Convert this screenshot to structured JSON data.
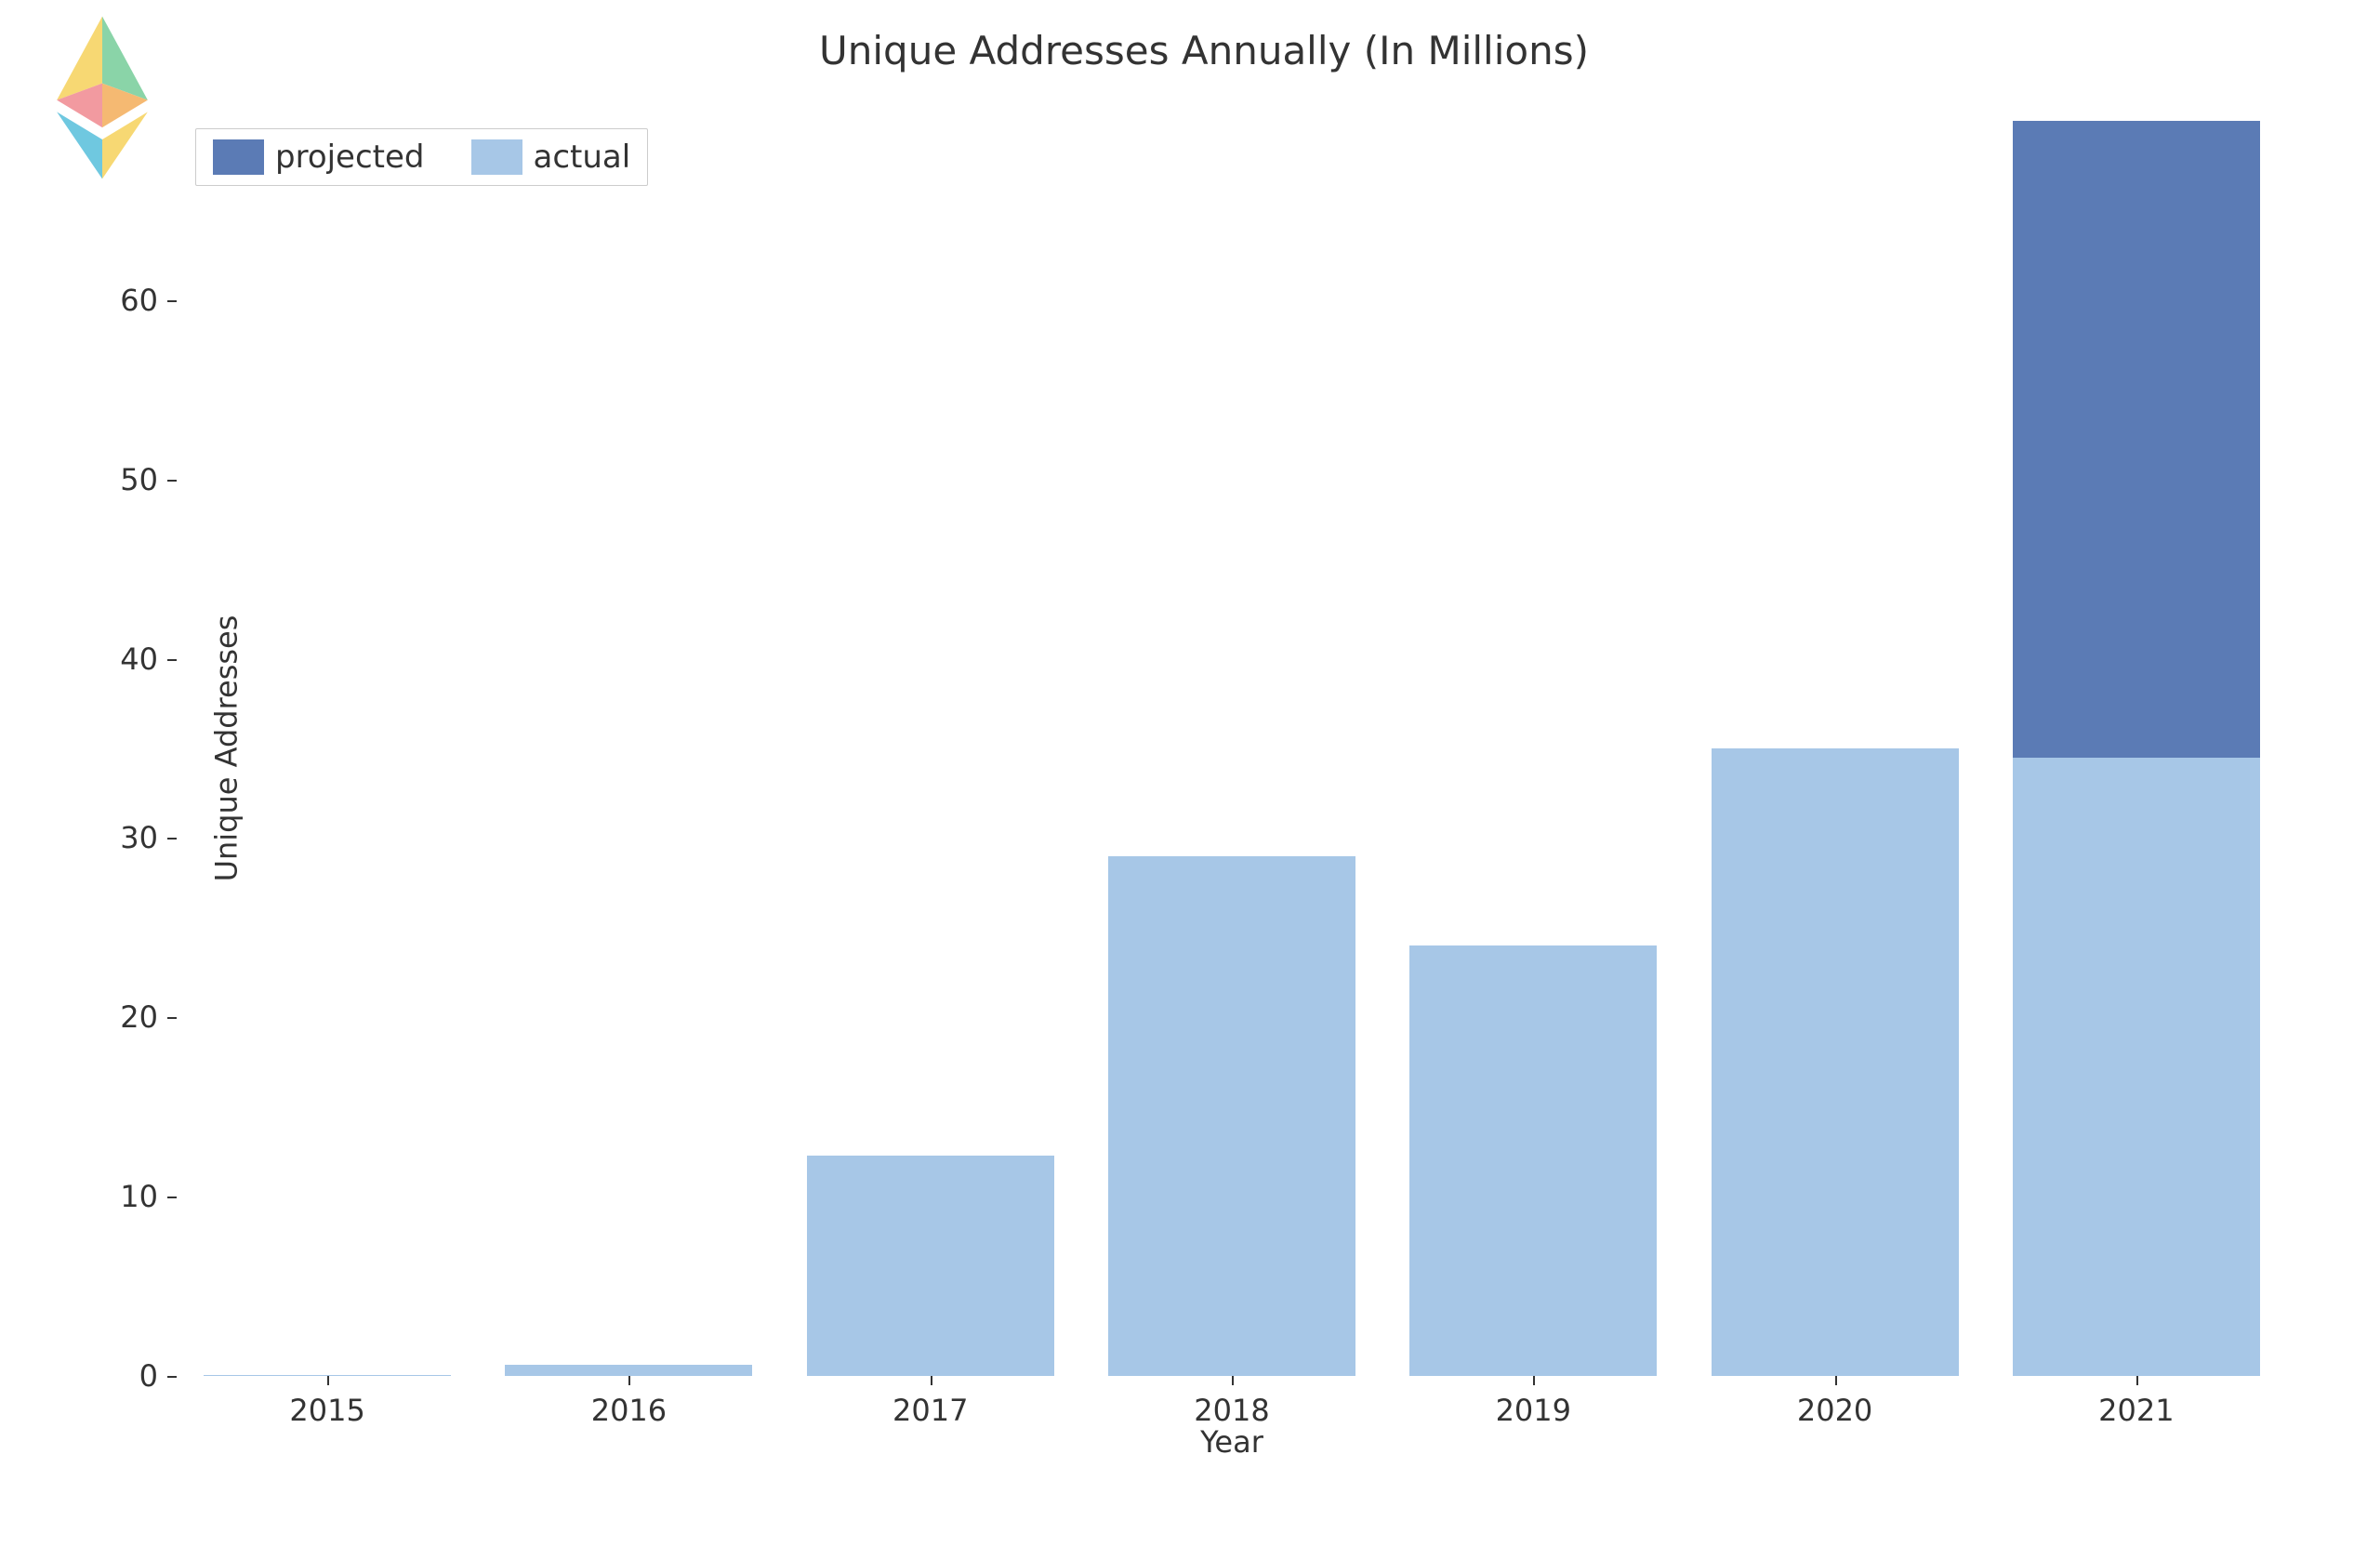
{
  "chart": {
    "type": "bar",
    "title": "Unique Addresses Annually (In Millions)",
    "title_fontsize": 42,
    "title_color": "#333333",
    "xlabel": "Year",
    "ylabel": "Unique Addresses",
    "axis_label_fontsize": 32,
    "tick_fontsize": 32,
    "background_color": "#ffffff",
    "categories": [
      "2015",
      "2016",
      "2017",
      "2018",
      "2019",
      "2020",
      "2021"
    ],
    "series": [
      {
        "name": "projected",
        "color": "#5b7bb5",
        "values": [
          0.0,
          0.0,
          0.0,
          0.0,
          0.0,
          0.0,
          70.0
        ]
      },
      {
        "name": "actual",
        "color": "#a7c7e7",
        "values": [
          0.05,
          0.6,
          12.3,
          29.0,
          24.0,
          35.0,
          34.5
        ]
      }
    ],
    "ylim": [
      0,
      70
    ],
    "ytick_step": 10,
    "yticks": [
      0,
      10,
      20,
      30,
      40,
      50,
      60
    ],
    "bar_width": 0.82,
    "legend": {
      "position": "upper left",
      "fontsize": 34,
      "items": [
        {
          "label": "projected",
          "color": "#5b7bb5"
        },
        {
          "label": "actual",
          "color": "#a7c7e7"
        }
      ]
    }
  },
  "logo": {
    "name": "ethereum-rainbow-logo",
    "colors": [
      "#f7d873",
      "#8ad4a8",
      "#f29aa0",
      "#6fc8e0",
      "#f5b972"
    ]
  }
}
